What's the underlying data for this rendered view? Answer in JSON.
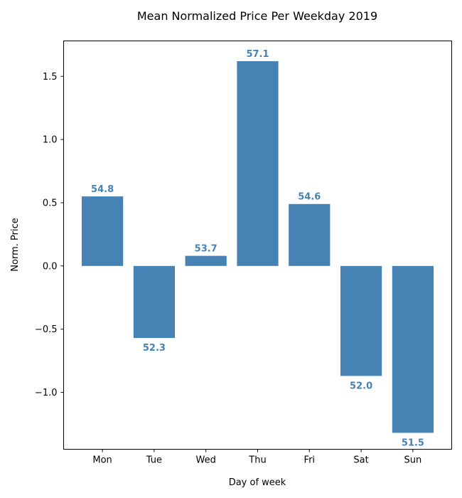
{
  "chart_data": {
    "type": "bar",
    "title": "Mean Normalized Price Per Weekday 2019",
    "xlabel": "Day of week",
    "ylabel": "Norm. Price",
    "categories": [
      "Mon",
      "Tue",
      "Wed",
      "Thu",
      "Fri",
      "Sat",
      "Sun"
    ],
    "values": [
      0.55,
      -0.57,
      0.08,
      1.62,
      0.49,
      -0.87,
      -1.32
    ],
    "data_labels": [
      "54.8",
      "52.3",
      "53.7",
      "57.1",
      "54.6",
      "52.0",
      "51.5"
    ],
    "ylim": [
      -1.45,
      1.78
    ],
    "yticks": [
      -1.0,
      -0.5,
      0.0,
      0.5,
      1.0,
      1.5
    ],
    "ytick_labels": [
      "−1.0",
      "−0.5",
      "0.0",
      "0.5",
      "1.0",
      "1.5"
    ],
    "bar_color": "#4682b4",
    "grid": false,
    "legend": "none"
  }
}
